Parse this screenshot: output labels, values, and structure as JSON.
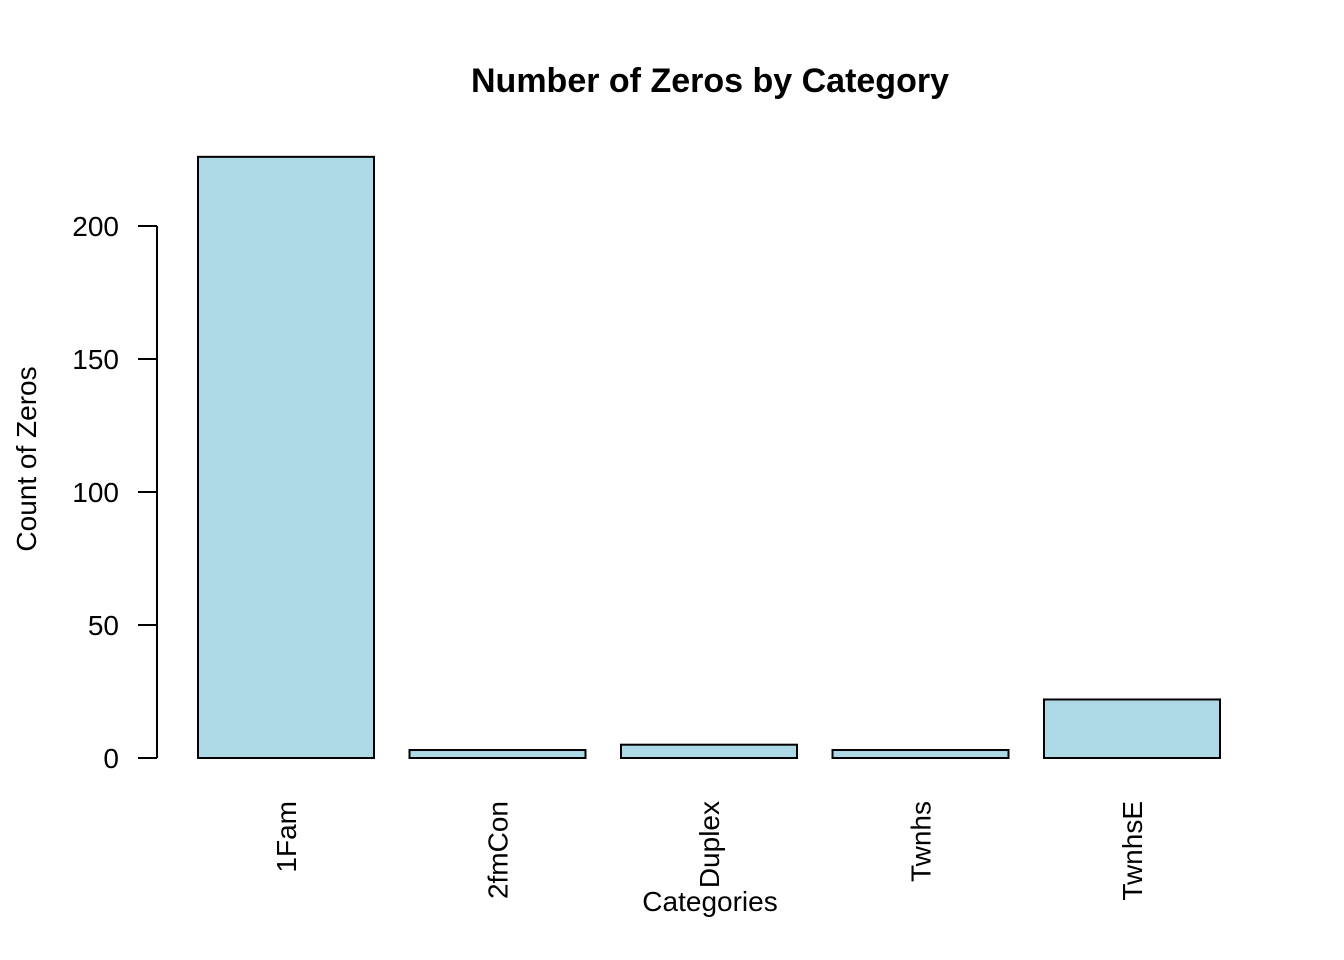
{
  "chart_data": {
    "type": "bar",
    "title": "Number of Zeros by Category",
    "xlabel": "Categories",
    "ylabel": "Count of Zeros",
    "categories": [
      "1Fam",
      "2fmCon",
      "Duplex",
      "Twnhs",
      "TwnhsE"
    ],
    "values": [
      226,
      3,
      5,
      3,
      22
    ],
    "ylim": [
      0,
      226
    ],
    "y_ticks": [
      0,
      50,
      100,
      150,
      200
    ],
    "bar_color": "#add8e6",
    "border_color": "#000000",
    "grid": false,
    "legend": "none",
    "x_tick_rotation": "vertical"
  }
}
